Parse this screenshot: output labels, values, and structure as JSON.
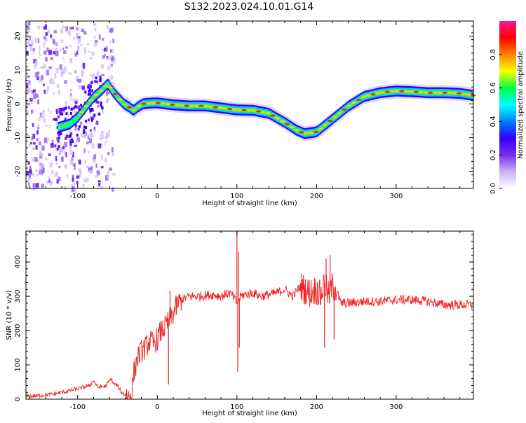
{
  "title": "S132.2023.024.10.01.G14",
  "chart_data": [
    {
      "type": "heatmap",
      "xlabel": "Height of straight line (km)",
      "ylabel": "Frequency (Hz)",
      "xlim": [
        -165,
        397
      ],
      "ylim": [
        -25,
        24.5
      ],
      "x_ticks": [
        -100,
        0,
        100,
        200,
        300
      ],
      "x_tick_labels": [
        "-100",
        "0",
        "100",
        "200",
        "300"
      ],
      "y_ticks": [
        -20,
        -10,
        0,
        10,
        20
      ],
      "y_tick_labels": [
        "-20",
        "-10",
        "0",
        "10",
        "20"
      ],
      "colorbar": {
        "label": "Normalized spectral amplitude",
        "range": [
          0,
          1
        ],
        "ticks": [
          0.0,
          0.2,
          0.4,
          0.6,
          0.8
        ],
        "tick_labels": [
          "0.0",
          "0.2",
          "0.4",
          "0.6",
          "0.8"
        ],
        "colors": [
          "#ffffff",
          "#c9b3f5",
          "#7a2cf0",
          "#3300ff",
          "#0080ff",
          "#00ffff",
          "#00ff40",
          "#ffff00",
          "#ff8000",
          "#ff0000",
          "#ff1493"
        ]
      },
      "ridge": {
        "x": [
          -125,
          -110,
          -100,
          -90,
          -80,
          -70,
          -62,
          -57,
          -50,
          -42,
          -35,
          -30,
          -25,
          -18,
          -10,
          0,
          20,
          40,
          60,
          80,
          100,
          120,
          140,
          160,
          175,
          185,
          200,
          220,
          240,
          260,
          280,
          300,
          320,
          340,
          360,
          380,
          397
        ],
        "y": [
          -7,
          -6,
          -4,
          -1,
          2,
          4,
          6,
          4,
          2,
          0,
          -1,
          -2,
          -1,
          0,
          0.2,
          0.3,
          -0.3,
          -0.6,
          -0.6,
          -1.2,
          -1.8,
          -1.9,
          -2.8,
          -5.5,
          -7.8,
          -8.8,
          -8.3,
          -4.5,
          -0.7,
          2.2,
          3.3,
          3.8,
          3.6,
          3.3,
          3.3,
          3.1,
          2.5
        ]
      }
    },
    {
      "type": "line",
      "xlabel": "Height of straight line (km)",
      "ylabel": "SNR (10 * v/v)",
      "xlim": [
        -165,
        397
      ],
      "ylim": [
        0,
        490
      ],
      "x_ticks": [
        -100,
        0,
        100,
        200,
        300
      ],
      "x_tick_labels": [
        "-100",
        "0",
        "100",
        "200",
        "300"
      ],
      "y_ticks": [
        0,
        100,
        200,
        300,
        400
      ],
      "y_tick_labels": [
        "0",
        "100",
        "200",
        "300",
        "400"
      ],
      "color": "#ee2222",
      "series": [
        {
          "x": [
            -165,
            -150,
            -130,
            -115,
            -105,
            -100,
            -85,
            -80,
            -75,
            -65,
            -58,
            -55,
            -50,
            -45,
            -40,
            -35,
            -32,
            -30,
            -25,
            -20,
            -15,
            -10,
            -5,
            0,
            5,
            10,
            15,
            20,
            25,
            30,
            40,
            50,
            60,
            70,
            80,
            90,
            95,
            100,
            105,
            110,
            120,
            130,
            140,
            150,
            160,
            170,
            180,
            190,
            200,
            205,
            210,
            215,
            220,
            225,
            230,
            240,
            260,
            280,
            300,
            320,
            340,
            360,
            380,
            397
          ],
          "y": [
            8,
            10,
            15,
            22,
            28,
            30,
            40,
            55,
            35,
            38,
            60,
            45,
            40,
            20,
            12,
            8,
            15,
            70,
            120,
            140,
            150,
            170,
            160,
            175,
            200,
            210,
            230,
            250,
            275,
            290,
            300,
            300,
            302,
            305,
            300,
            310,
            300,
            280,
            300,
            305,
            310,
            300,
            305,
            310,
            320,
            300,
            330,
            310,
            320,
            300,
            340,
            300,
            330,
            320,
            280,
            280,
            285,
            285,
            290,
            290,
            285,
            275,
            275,
            275
          ]
        }
      ],
      "noise": 14,
      "spikes": [
        {
          "x": 14,
          "y": 43
        },
        {
          "x": 16,
          "y": 315
        },
        {
          "x": 100,
          "y": 490
        },
        {
          "x": 101,
          "y": 80
        },
        {
          "x": 102,
          "y": 430
        },
        {
          "x": 103,
          "y": 150
        },
        {
          "x": 210,
          "y": 150
        },
        {
          "x": 212,
          "y": 410
        },
        {
          "x": 217,
          "y": 420
        },
        {
          "x": 222,
          "y": 175
        }
      ]
    }
  ]
}
